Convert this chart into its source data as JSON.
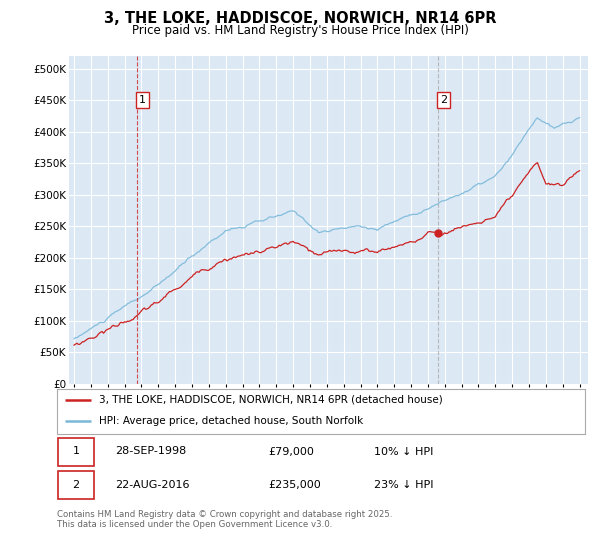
{
  "title": "3, THE LOKE, HADDISCOE, NORWICH, NR14 6PR",
  "subtitle": "Price paid vs. HM Land Registry's House Price Index (HPI)",
  "ylim": [
    0,
    520000
  ],
  "yticks": [
    0,
    50000,
    100000,
    150000,
    200000,
    250000,
    300000,
    350000,
    400000,
    450000,
    500000
  ],
  "bg_color": "#dce9f5",
  "grid_color": "#ffffff",
  "line1_color": "#cc2222",
  "line2_color": "#7ab8d9",
  "marker1_x": 1998.75,
  "marker1_color": "#cc2222",
  "marker2_x": 2016.62,
  "marker2_color": "#aaaaaa",
  "legend_label1": "3, THE LOKE, HADDISCOE, NORWICH, NR14 6PR (detached house)",
  "legend_label2": "HPI: Average price, detached house, South Norfolk",
  "note1_num": "1",
  "note1_date": "28-SEP-1998",
  "note1_price": "£79,000",
  "note1_hpi": "10% ↓ HPI",
  "note2_num": "2",
  "note2_date": "22-AUG-2016",
  "note2_price": "£235,000",
  "note2_hpi": "23% ↓ HPI",
  "footer": "Contains HM Land Registry data © Crown copyright and database right 2025.\nThis data is licensed under the Open Government Licence v3.0."
}
